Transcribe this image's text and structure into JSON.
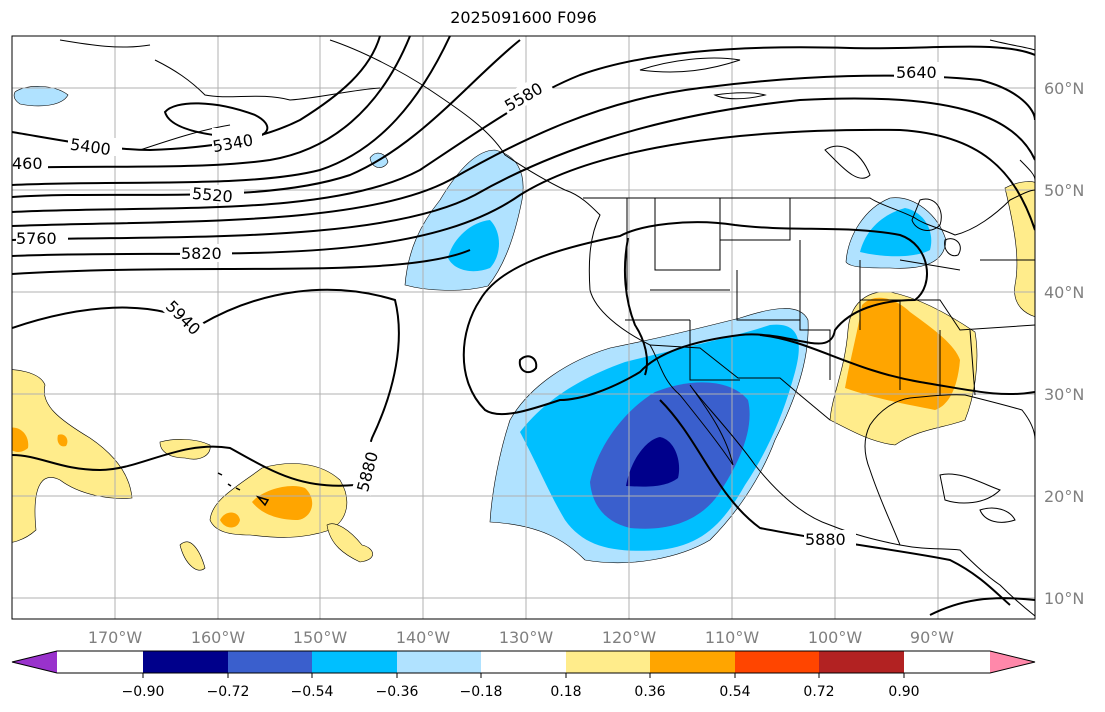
{
  "title": "2025091600 F096",
  "colors": {
    "below_min": "#9932cc",
    "levels": [
      "#00008b",
      "#3a5fcd",
      "#00bfff",
      "#b0e2ff",
      "#ffffff",
      "#ffec8b",
      "#ffa500",
      "#ff4500",
      "#b22222"
    ],
    "above_max": "#ff88aa"
  },
  "longitude_labels": [
    "170°W",
    "160°W",
    "150°W",
    "140°W",
    "130°W",
    "120°W",
    "110°W",
    "100°W",
    "90°W"
  ],
  "latitude_labels": [
    "60°N",
    "50°N",
    "40°N",
    "30°N",
    "20°N",
    "10°N"
  ],
  "colorbar_ticks": [
    "−0.90",
    "−0.72",
    "−0.54",
    "−0.36",
    "−0.18",
    "0.18",
    "0.36",
    "0.54",
    "0.72",
    "0.90"
  ],
  "contour_labels": [
    "5340",
    "5400",
    "460",
    "5520",
    "5580",
    "5640",
    "5760",
    "5820",
    "5940",
    "5880",
    "5880"
  ]
}
